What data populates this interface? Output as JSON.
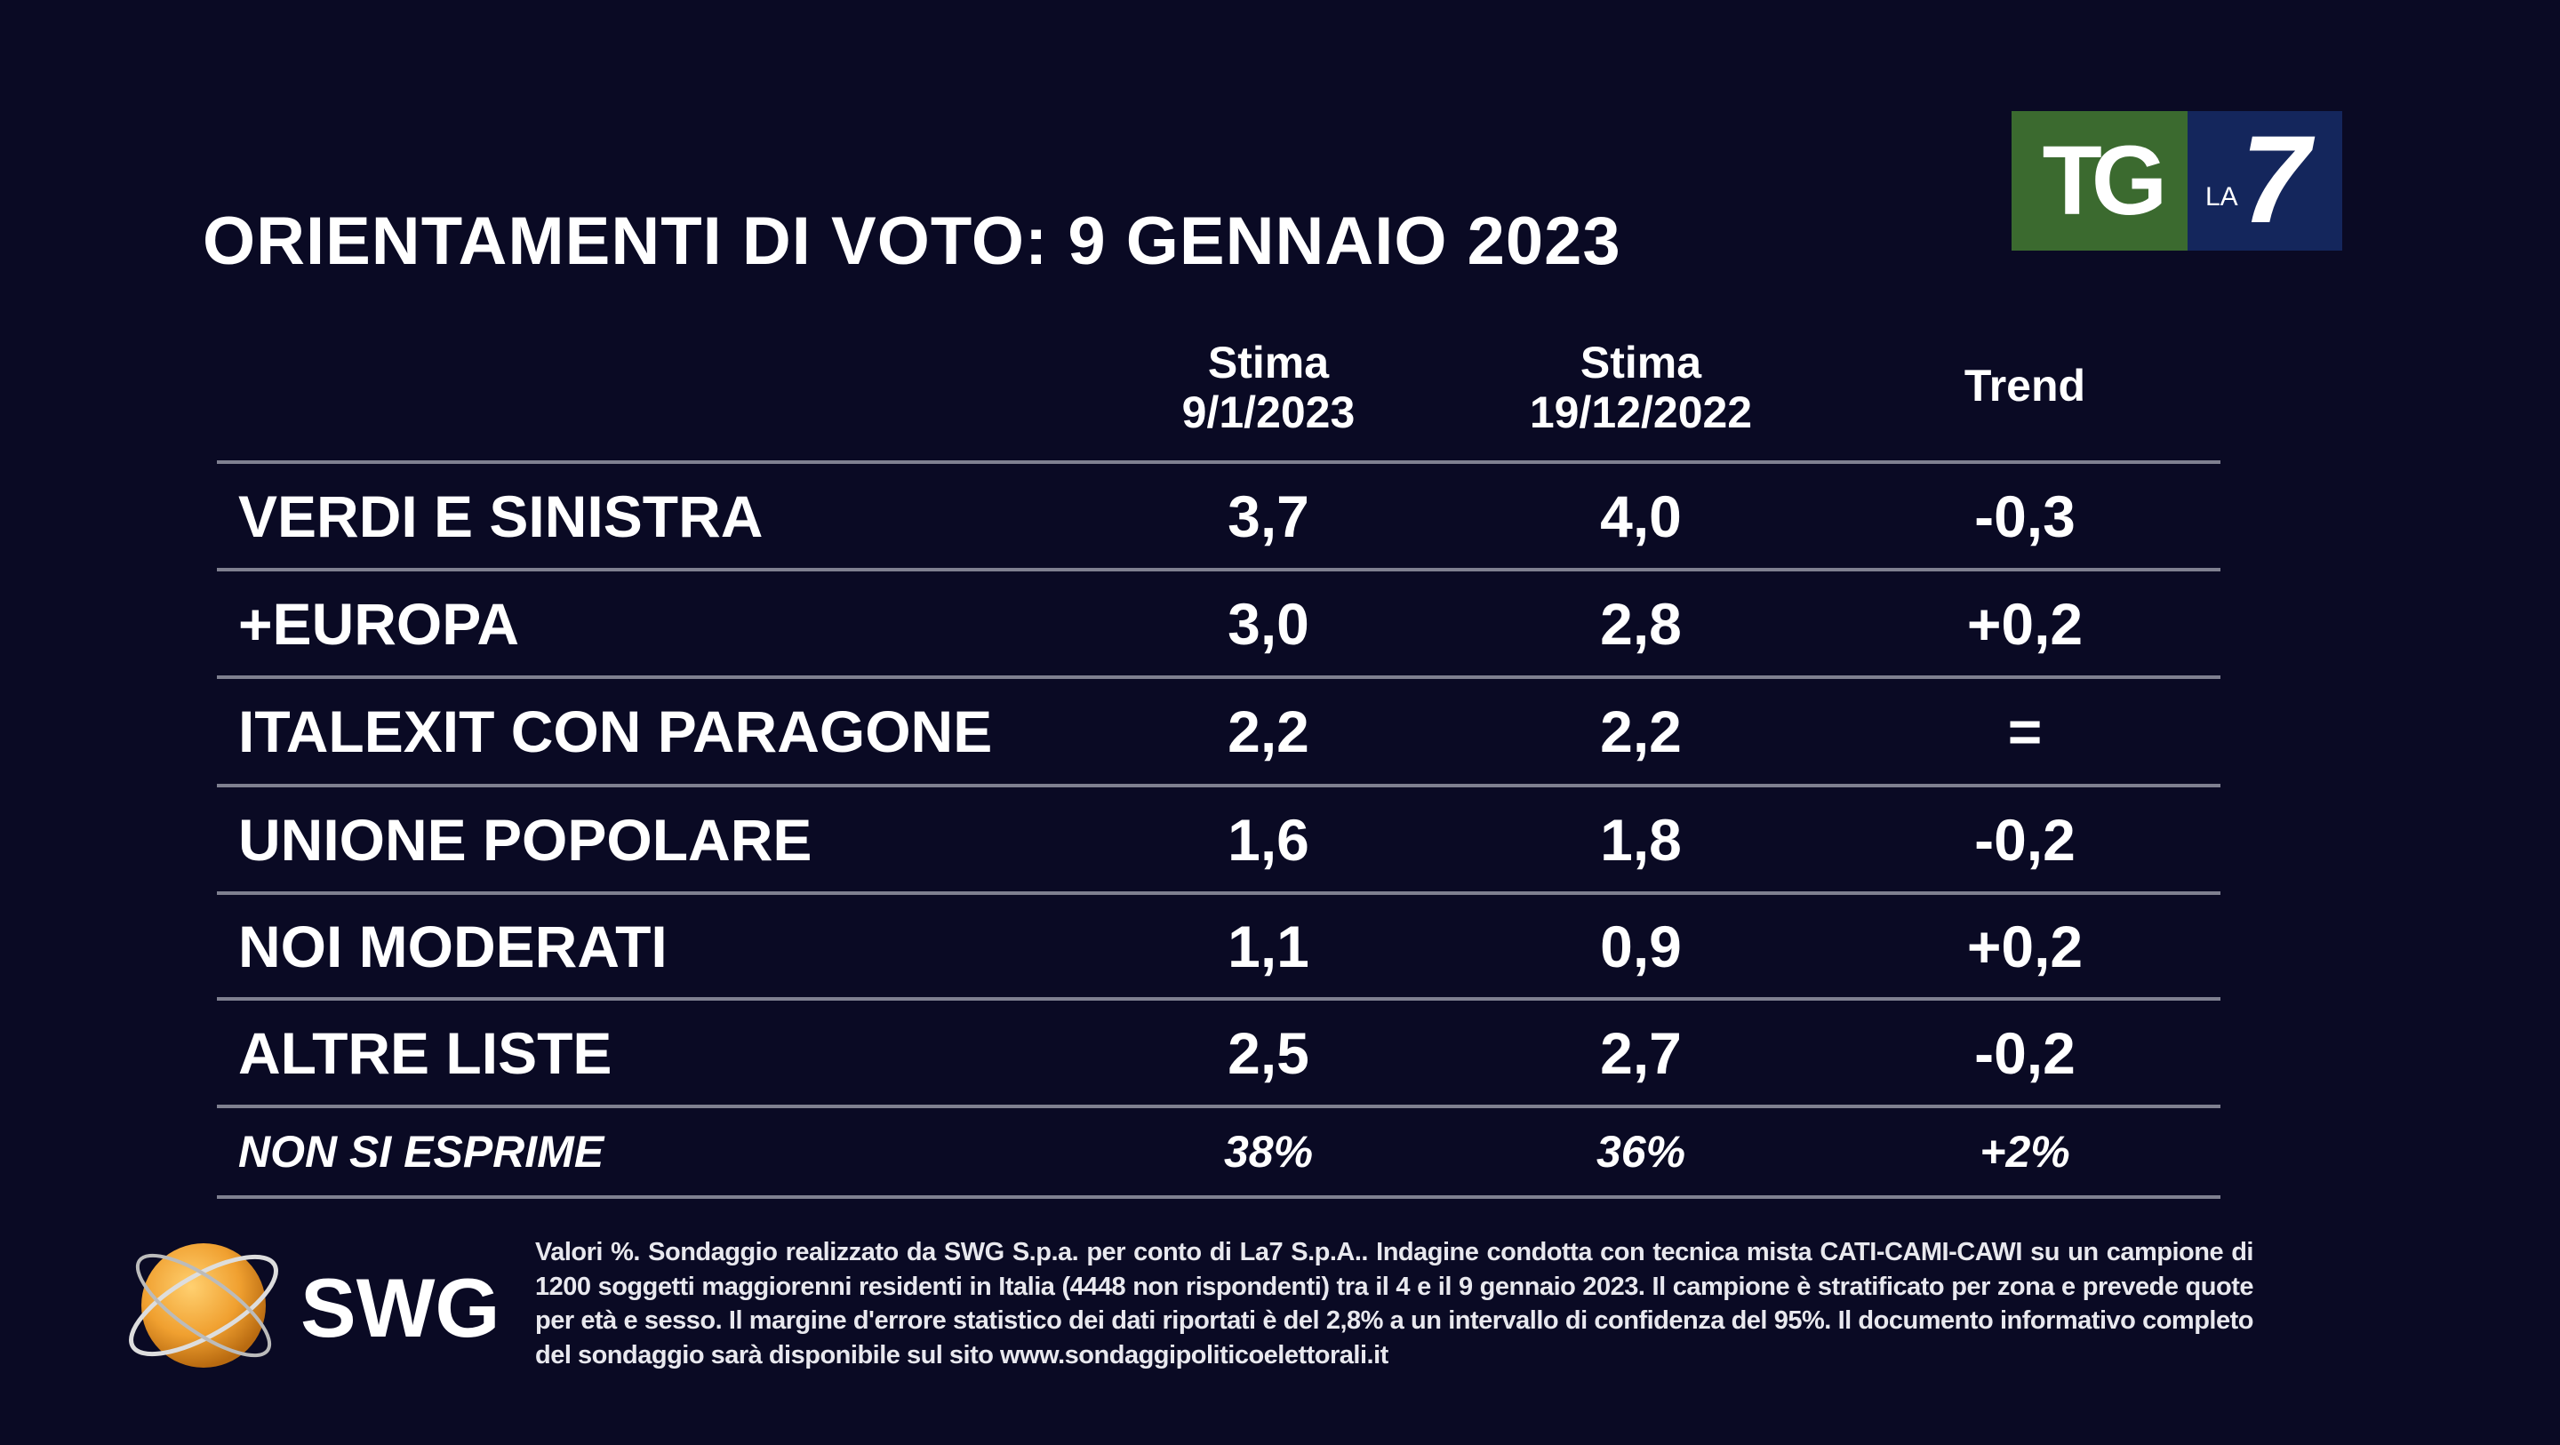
{
  "title": "ORIENTAMENTI DI VOTO: 9 GENNAIO 2023",
  "logo": {
    "text": "TG LA7",
    "colors": {
      "green": "#3b6a2f",
      "blue": "#14265c"
    }
  },
  "headers": [
    {
      "line1": "Stima",
      "line2": "9/1/2023"
    },
    {
      "line1": "Stima",
      "line2": "19/12/2022"
    },
    {
      "line1": "Trend",
      "line2": ""
    }
  ],
  "rows": [
    {
      "party": "VERDI E SINISTRA",
      "current": "3,7",
      "previous": "4,0",
      "trend": "-0,3"
    },
    {
      "party": "+EUROPA",
      "current": "3,0",
      "previous": "2,8",
      "trend": "+0,2"
    },
    {
      "party": "ITALEXIT CON PARAGONE",
      "current": "2,2",
      "previous": "2,2",
      "trend": "="
    },
    {
      "party": "UNIONE POPOLARE",
      "current": "1,6",
      "previous": "1,8",
      "trend": "-0,2"
    },
    {
      "party": "NOI MODERATI",
      "current": "1,1",
      "previous": "0,9",
      "trend": "+0,2"
    },
    {
      "party": "ALTRE LISTE",
      "current": "2,5",
      "previous": "2,7",
      "trend": "-0,2"
    },
    {
      "party": "NON SI ESPRIME",
      "current": "38%",
      "previous": "36%",
      "trend": "+2%"
    }
  ],
  "swg_logo": "SWG",
  "footnote": "Valori %. Sondaggio realizzato da SWG S.p.a. per conto di La7 S.p.A.. Indagine condotta con tecnica mista CATI-CAMI-CAWI su un campione di 1200 soggetti maggiorenni residenti in Italia (4448 non rispondenti) tra il 4 e il 9 gennaio 2023. Il campione è stratificato per zona e prevede quote per età e sesso. Il margine d'errore statistico dei dati riportati è del 2,8% a un intervallo di confidenza del 95%. Il documento informativo completo del sondaggio sarà disponibile sul sito www.sondaggipoliticoelettorali.it"
}
